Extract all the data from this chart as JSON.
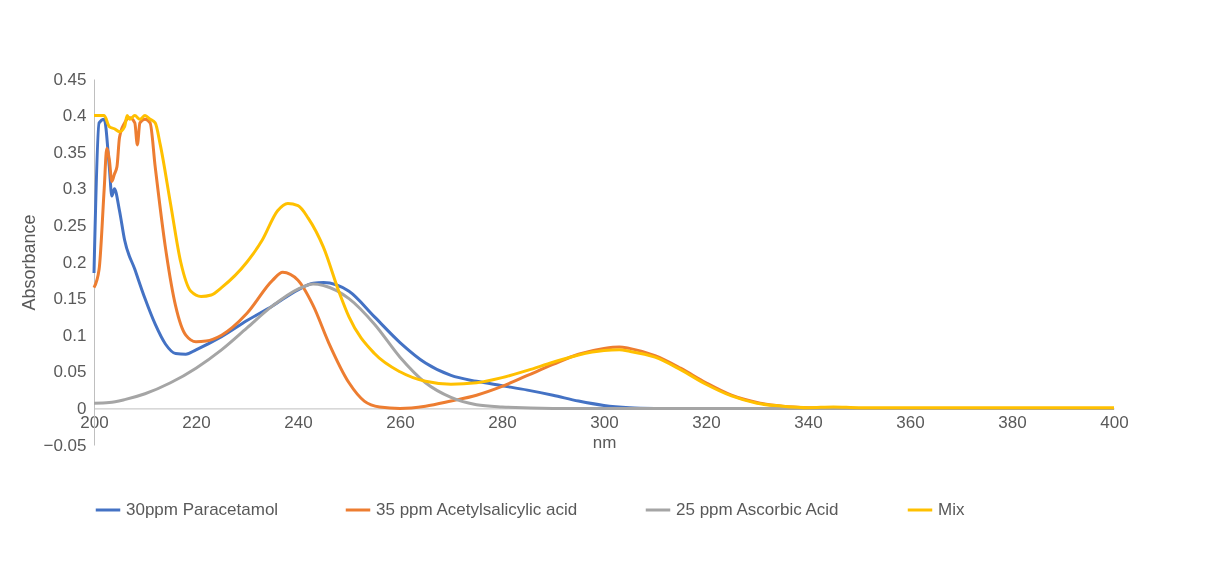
{
  "chart_data": {
    "type": "line",
    "xlabel": "nm",
    "ylabel": "Absorbance",
    "xlim": [
      200,
      400
    ],
    "ylim": [
      -0.05,
      0.45
    ],
    "xticks": [
      200,
      220,
      240,
      260,
      280,
      300,
      320,
      340,
      360,
      380,
      400
    ],
    "yticks": [
      -0.05,
      0,
      0.05,
      0.1,
      0.15,
      0.2,
      0.25,
      0.3,
      0.35,
      0.4,
      0.45
    ],
    "grid": false,
    "legend": "bottom",
    "marker": "none",
    "line_style": "solid",
    "series": [
      {
        "name": "30ppm Paracetamol",
        "color": "#4472c4",
        "x": [
          200,
          201,
          202,
          203,
          203.5,
          204,
          205,
          206,
          208,
          210,
          212,
          214,
          216,
          218,
          220,
          225,
          230,
          235,
          240,
          243,
          245,
          250,
          255,
          260,
          265,
          270,
          275,
          280,
          285,
          290,
          295,
          300,
          305,
          310
        ],
        "values": [
          0.185,
          0.39,
          0.395,
          0.33,
          0.29,
          0.3,
          0.27,
          0.23,
          0.19,
          0.15,
          0.115,
          0.088,
          0.075,
          0.074,
          0.08,
          0.098,
          0.12,
          0.14,
          0.162,
          0.171,
          0.172,
          0.16,
          0.125,
          0.09,
          0.062,
          0.045,
          0.037,
          0.031,
          0.025,
          0.018,
          0.01,
          0.004,
          0.001,
          0
        ]
      },
      {
        "name": "35 ppm Acetylsalicylic acid",
        "color": "#ed7d31",
        "x": [
          200,
          201,
          202,
          202.5,
          203,
          203.5,
          204,
          204.5,
          205,
          206,
          207,
          208,
          208.5,
          209,
          210,
          211,
          212,
          214,
          216,
          218,
          220,
          222,
          225,
          230,
          235,
          237,
          240,
          243,
          246,
          250,
          253,
          256,
          260,
          265,
          270,
          275,
          280,
          285,
          290,
          295,
          300,
          303,
          305,
          310,
          315,
          320,
          325,
          330,
          335,
          340,
          350,
          400
        ],
        "values": [
          0.165,
          0.19,
          0.3,
          0.355,
          0.34,
          0.31,
          0.32,
          0.33,
          0.37,
          0.39,
          0.397,
          0.39,
          0.36,
          0.39,
          0.395,
          0.39,
          0.33,
          0.22,
          0.14,
          0.1,
          0.091,
          0.092,
          0.1,
          0.13,
          0.175,
          0.186,
          0.175,
          0.14,
          0.09,
          0.035,
          0.01,
          0.002,
          0,
          0.003,
          0.01,
          0.018,
          0.03,
          0.045,
          0.06,
          0.074,
          0.082,
          0.084,
          0.082,
          0.072,
          0.055,
          0.035,
          0.018,
          0.008,
          0.003,
          0.001,
          0,
          0
        ]
      },
      {
        "name": "25 ppm Ascorbic Acid",
        "color": "#a5a5a5",
        "x": [
          200,
          203,
          206,
          210,
          215,
          220,
          225,
          230,
          235,
          240,
          243,
          245,
          250,
          255,
          260,
          265,
          270,
          275,
          280,
          290,
          400
        ],
        "values": [
          0.007,
          0.008,
          0.012,
          0.02,
          0.035,
          0.055,
          0.08,
          0.11,
          0.14,
          0.163,
          0.17,
          0.168,
          0.15,
          0.115,
          0.07,
          0.035,
          0.015,
          0.005,
          0.002,
          0,
          0
        ]
      },
      {
        "name": "Mix",
        "color": "#ffc000",
        "x": [
          200,
          201,
          202,
          203,
          204,
          205,
          206,
          206.5,
          207,
          208,
          209,
          210,
          211,
          212,
          213,
          215,
          217,
          219,
          221,
          223,
          225,
          230,
          233,
          236,
          238,
          240,
          242,
          245,
          248,
          250,
          255,
          260,
          265,
          270,
          275,
          280,
          285,
          290,
          295,
          300,
          303,
          305,
          310,
          315,
          320,
          325,
          330,
          335,
          340,
          345,
          350,
          400
        ],
        "values": [
          0.4,
          0.4,
          0.4,
          0.385,
          0.382,
          0.378,
          0.385,
          0.4,
          0.395,
          0.4,
          0.395,
          0.4,
          0.395,
          0.39,
          0.36,
          0.28,
          0.2,
          0.16,
          0.153,
          0.155,
          0.165,
          0.2,
          0.23,
          0.27,
          0.28,
          0.277,
          0.26,
          0.22,
          0.16,
          0.125,
          0.075,
          0.05,
          0.037,
          0.033,
          0.035,
          0.042,
          0.052,
          0.063,
          0.073,
          0.079,
          0.08,
          0.078,
          0.07,
          0.053,
          0.033,
          0.017,
          0.007,
          0.003,
          0.001,
          0.002,
          0.001,
          0.001
        ]
      }
    ]
  }
}
